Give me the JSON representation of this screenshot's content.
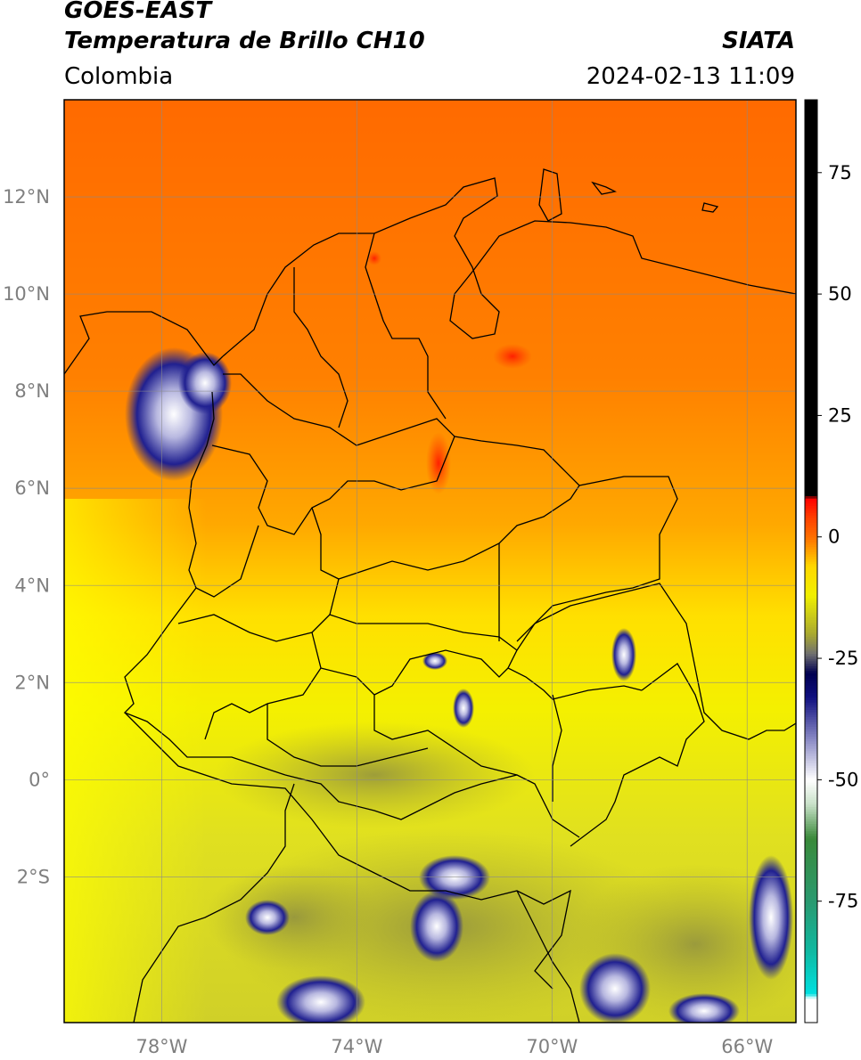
{
  "header": {
    "satellite": "GOES-EAST",
    "product": "Temperatura de Brillo CH10",
    "brand": "SIATA",
    "region": "Colombia",
    "datetime": "2024-02-13 11:09"
  },
  "map": {
    "lon_range": [
      -80,
      -65
    ],
    "lat_range": [
      -5,
      14
    ],
    "lat_ticks": [
      {
        "value": 12,
        "label": "12°N"
      },
      {
        "value": 10,
        "label": "10°N"
      },
      {
        "value": 8,
        "label": "8°N"
      },
      {
        "value": 6,
        "label": "6°N"
      },
      {
        "value": 4,
        "label": "4°N"
      },
      {
        "value": 2,
        "label": "2°N"
      },
      {
        "value": 0,
        "label": "0°"
      },
      {
        "value": -2,
        "label": "2°S"
      }
    ],
    "lon_ticks": [
      {
        "value": -78,
        "label": "78°W"
      },
      {
        "value": -74,
        "label": "74°W"
      },
      {
        "value": -70,
        "label": "70°W"
      },
      {
        "value": -66,
        "label": "66°W"
      }
    ],
    "grid": true
  },
  "colorbar": {
    "range": [
      -100,
      90
    ],
    "ticks": [
      {
        "value": 75,
        "label": "75"
      },
      {
        "value": 50,
        "label": "50"
      },
      {
        "value": 25,
        "label": "25"
      },
      {
        "value": 0,
        "label": "0"
      },
      {
        "value": -25,
        "label": "-25"
      },
      {
        "value": -50,
        "label": "-50"
      },
      {
        "value": -75,
        "label": "-75"
      }
    ],
    "stops": [
      {
        "value": -100,
        "color": "#ffffff"
      },
      {
        "value": -95,
        "color": "#ffffff"
      },
      {
        "value": -94,
        "color": "#00e0e0"
      },
      {
        "value": -85,
        "color": "#10b8a0"
      },
      {
        "value": -75,
        "color": "#2a9a70"
      },
      {
        "value": -62,
        "color": "#3a8a3a"
      },
      {
        "value": -55,
        "color": "#c8e0c8"
      },
      {
        "value": -50,
        "color": "#ffffff"
      },
      {
        "value": -42,
        "color": "#9090c8"
      },
      {
        "value": -33,
        "color": "#101080"
      },
      {
        "value": -28,
        "color": "#000050"
      },
      {
        "value": -24,
        "color": "#707070"
      },
      {
        "value": -20,
        "color": "#a8a830"
      },
      {
        "value": -12,
        "color": "#f0f000"
      },
      {
        "value": -6,
        "color": "#ffd800"
      },
      {
        "value": 0,
        "color": "#ff7000"
      },
      {
        "value": 4,
        "color": "#ff4000"
      },
      {
        "value": 8,
        "color": "#ff0000"
      },
      {
        "value": 8.5,
        "color": "#000000"
      },
      {
        "value": 90,
        "color": "#000000"
      }
    ]
  }
}
